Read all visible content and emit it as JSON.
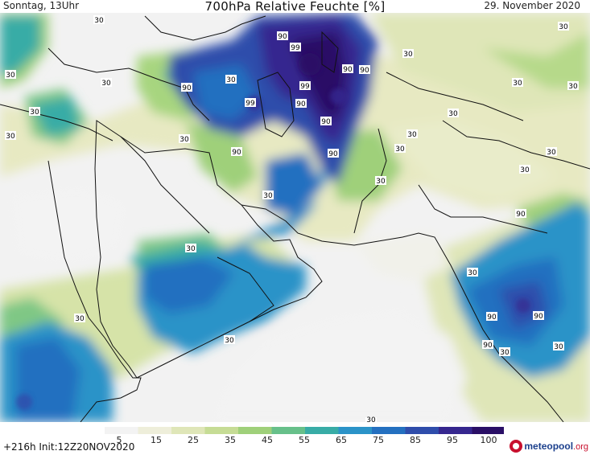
{
  "header": {
    "left": "Sonntag, 13Uhr",
    "title": "700hPa Relative Feuchte [%]",
    "right": "29. November 2020"
  },
  "map": {
    "contour_labels": [
      "30",
      "90",
      "99",
      "30",
      "30",
      "90",
      "90",
      "99",
      "90",
      "99",
      "90",
      "90",
      "90",
      "90",
      "30",
      "90",
      "30",
      "30",
      "30",
      "30",
      "30",
      "30",
      "30",
      "30",
      "30",
      "30",
      "30",
      "30",
      "30",
      "30",
      "30",
      "90",
      "90",
      "30",
      "30",
      "30",
      "90",
      "30",
      "30",
      "30"
    ]
  },
  "legend": {
    "ticks": [
      "5",
      "15",
      "25",
      "35",
      "45",
      "55",
      "65",
      "75",
      "85",
      "95",
      "100"
    ],
    "colors": [
      "#f3f3f3",
      "#eeeeda",
      "#dfe6b8",
      "#c6dc95",
      "#9fd07a",
      "#67c08a",
      "#38aca6",
      "#2b93c8",
      "#2470c0",
      "#2f4dab",
      "#36278f",
      "#2a0f66"
    ]
  },
  "footer": {
    "run_info": "+216h  Init:12Z20NOV2020",
    "brand_main": "meteopool",
    "brand_suffix": ".org"
  }
}
